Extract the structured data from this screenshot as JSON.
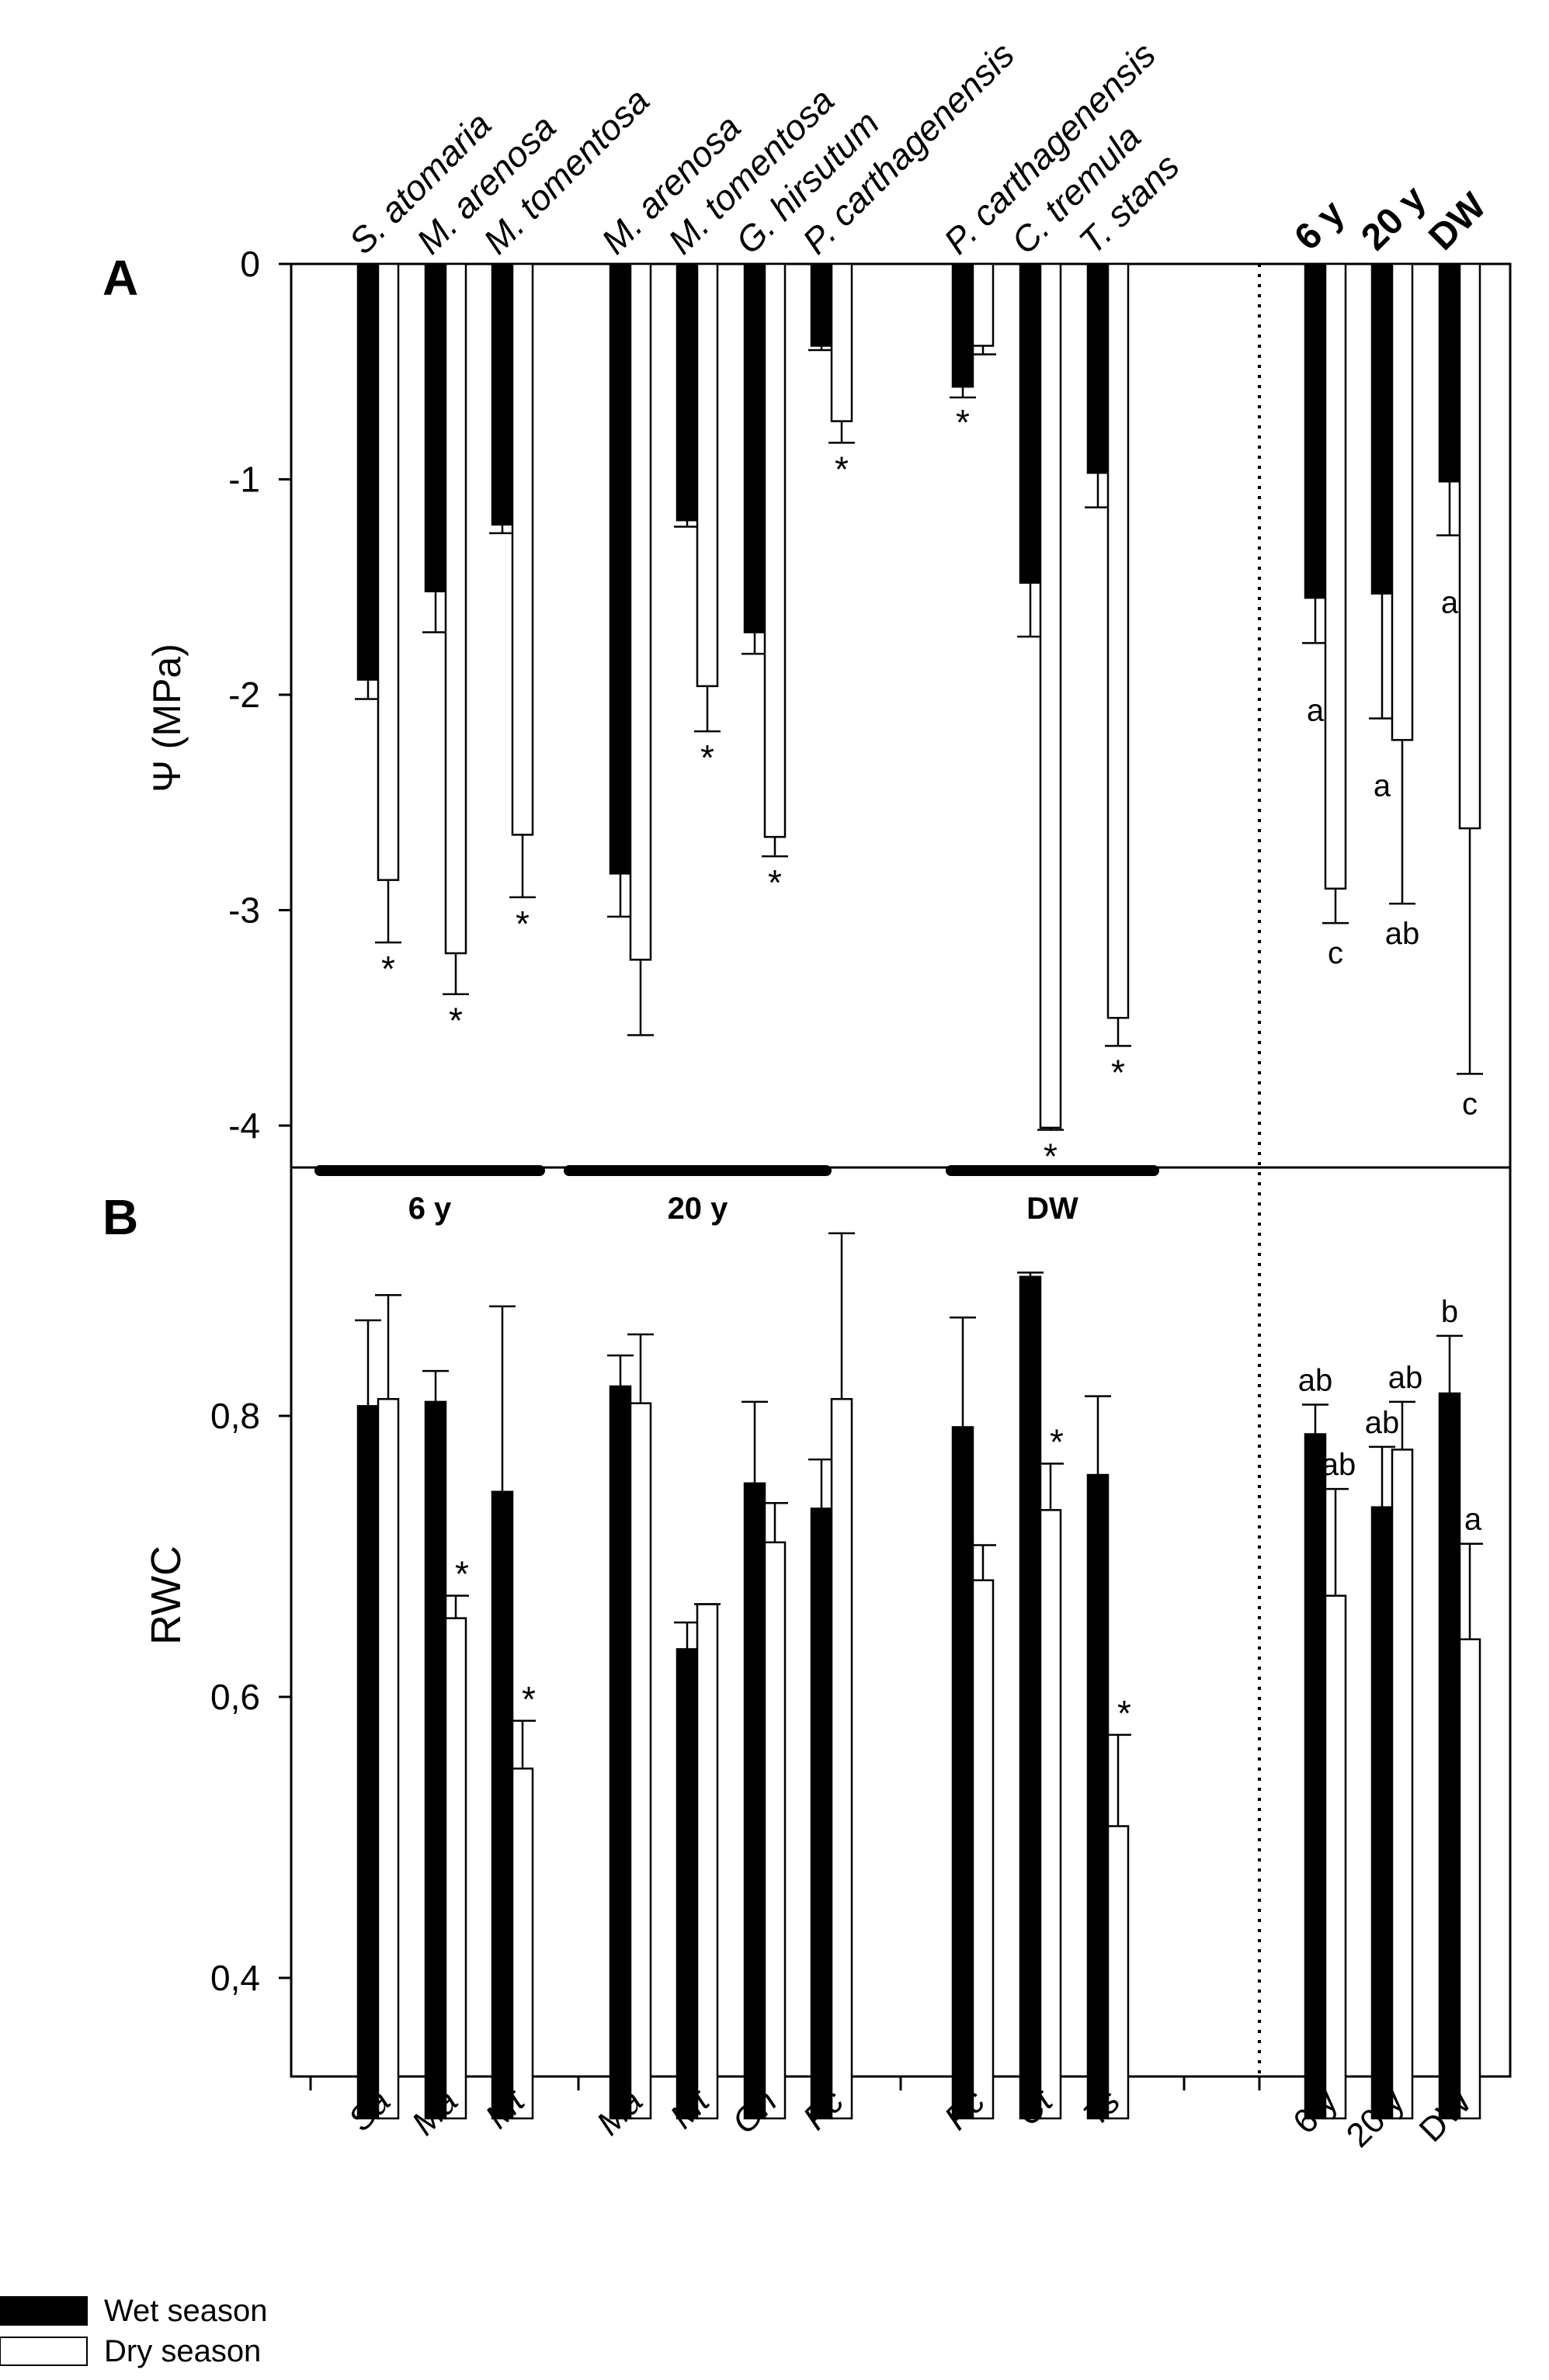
{
  "chart_data": [
    {
      "panel": "A",
      "type": "bar",
      "ylabel": "Ψ (MPa)",
      "ylim": [
        -4.2,
        0
      ],
      "yticks": [
        0,
        -1,
        -2,
        -3,
        -4
      ],
      "ytick_labels": [
        "0",
        "-1",
        "-2",
        "-3",
        "-4"
      ],
      "groups": [
        {
          "label": "6 y",
          "categories": [
            "Sa",
            "Ma",
            "Mt"
          ],
          "species": [
            "S. atomaria",
            "M. arenosa",
            "M. tomentosa"
          ],
          "wet": [
            -1.93,
            -1.52,
            -1.21
          ],
          "wet_err": [
            0.09,
            0.19,
            0.04
          ],
          "dry": [
            -2.86,
            -3.2,
            -2.65
          ],
          "dry_err": [
            0.29,
            0.19,
            0.29
          ],
          "marks": [
            "*",
            "*",
            "*"
          ]
        },
        {
          "label": "20 y",
          "categories": [
            "Ma",
            "Mt",
            "Gh",
            "Pc"
          ],
          "species": [
            "M. arenosa",
            "M. tomentosa",
            "G. hirsutum",
            "P. carthagenensis"
          ],
          "wet": [
            -2.83,
            -1.19,
            -1.71,
            -0.38
          ],
          "wet_err": [
            0.2,
            0.03,
            0.1,
            0.02
          ],
          "dry": [
            -3.23,
            -1.96,
            -2.66,
            -0.73
          ],
          "dry_err": [
            0.35,
            0.21,
            0.09,
            0.1
          ],
          "marks": [
            "",
            "*",
            "*",
            "*"
          ]
        },
        {
          "label": "DW",
          "categories": [
            "Pc",
            "Ct",
            "Ts"
          ],
          "species": [
            "P. carthagenensis",
            "C. tremula",
            "T. stans"
          ],
          "wet": [
            -0.57,
            -1.48,
            -0.97
          ],
          "wet_err": [
            0.05,
            0.25,
            0.16
          ],
          "dry": [
            -0.38,
            -4.01,
            -3.5
          ],
          "dry_err": [
            0.04,
            0.01,
            0.13
          ],
          "marks": [
            "*",
            "*",
            "*"
          ]
        }
      ],
      "summary": {
        "categories": [
          "6 y",
          "20 y",
          "DW"
        ],
        "wet": [
          -1.55,
          -1.53,
          -1.01
        ],
        "wet_err": [
          0.21,
          0.58,
          0.25
        ],
        "dry": [
          -2.9,
          -2.21,
          -2.62
        ],
        "dry_err": [
          0.16,
          0.76,
          1.14
        ],
        "wet_letters": [
          "a",
          "a",
          "a"
        ],
        "dry_letters": [
          "c",
          "ab",
          "c"
        ]
      }
    },
    {
      "panel": "B",
      "type": "bar",
      "ylabel": "RWC",
      "ylim": [
        0.3,
        0.94
      ],
      "yticks": [
        0.4,
        0.6,
        0.8
      ],
      "ytick_labels": [
        "0,4",
        "0,6",
        "0,8"
      ],
      "groups": [
        {
          "label": "6 y",
          "categories": [
            "Sa",
            "Ma",
            "Mt"
          ],
          "wet": [
            0.807,
            0.81,
            0.746
          ],
          "wet_err": [
            0.061,
            0.022,
            0.132
          ],
          "dry": [
            0.812,
            0.656,
            0.549
          ],
          "dry_err": [
            0.074,
            0.016,
            0.034
          ],
          "marks": [
            "",
            "*",
            "*"
          ]
        },
        {
          "label": "20 y",
          "categories": [
            "Ma",
            "Mt",
            "Gh",
            "Pc"
          ],
          "wet": [
            0.821,
            0.634,
            0.752,
            0.734
          ],
          "wet_err": [
            0.022,
            0.019,
            0.058,
            0.035
          ],
          "dry": [
            0.809,
            0.666,
            0.71,
            0.812
          ],
          "dry_err": [
            0.049,
            0.0,
            0.028,
            0.118
          ],
          "marks": [
            "",
            "",
            "",
            ""
          ]
        },
        {
          "label": "DW",
          "categories": [
            "Pc",
            "Ct",
            "Ts"
          ],
          "wet": [
            0.792,
            0.899,
            0.758
          ],
          "wet_err": [
            0.078,
            0.003,
            0.056
          ],
          "dry": [
            0.683,
            0.733,
            0.508
          ],
          "dry_err": [
            0.025,
            0.033,
            0.065
          ],
          "marks": [
            "",
            "*",
            "*"
          ]
        }
      ],
      "summary": {
        "categories": [
          "6 y",
          "20 y",
          "DW"
        ],
        "wet": [
          0.787,
          0.735,
          0.816
        ],
        "wet_err": [
          0.021,
          0.043,
          0.041
        ],
        "dry": [
          0.672,
          0.776,
          0.641
        ],
        "dry_err": [
          0.076,
          0.034,
          0.068
        ],
        "wet_letters": [
          "ab",
          "ab",
          "b"
        ],
        "dry_letters": [
          "ab",
          "ab",
          "a"
        ]
      }
    }
  ],
  "legend": {
    "wet": "Wet season",
    "dry": "Dry season"
  },
  "colors": {
    "wet": "#000000",
    "dry": "#ffffff"
  }
}
